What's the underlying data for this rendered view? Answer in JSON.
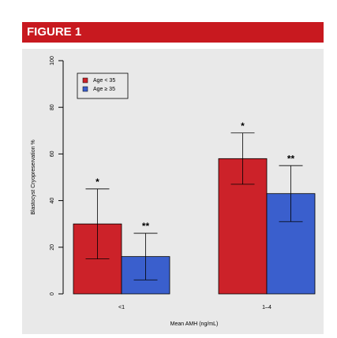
{
  "header": {
    "title": "FIGURE 1"
  },
  "chart_data": {
    "type": "bar",
    "categories": [
      "<1",
      "1–4"
    ],
    "series": [
      {
        "name": "Age < 35",
        "color": "#cc2229",
        "values": [
          30,
          58
        ],
        "errors": [
          15,
          11
        ],
        "annotations": [
          "*",
          "*"
        ]
      },
      {
        "name": "Age ≥ 35",
        "color": "#3a5fcd",
        "values": [
          16,
          43
        ],
        "errors": [
          10,
          12
        ],
        "annotations": [
          "**",
          "**"
        ]
      }
    ],
    "xlabel": "Mean AMH (ng/mL)",
    "ylabel": "Blastocyst Cryopreservation %",
    "ylim": [
      0,
      100
    ],
    "yticks": [
      0,
      20,
      40,
      60,
      80,
      100
    ],
    "legend": "upper left"
  }
}
